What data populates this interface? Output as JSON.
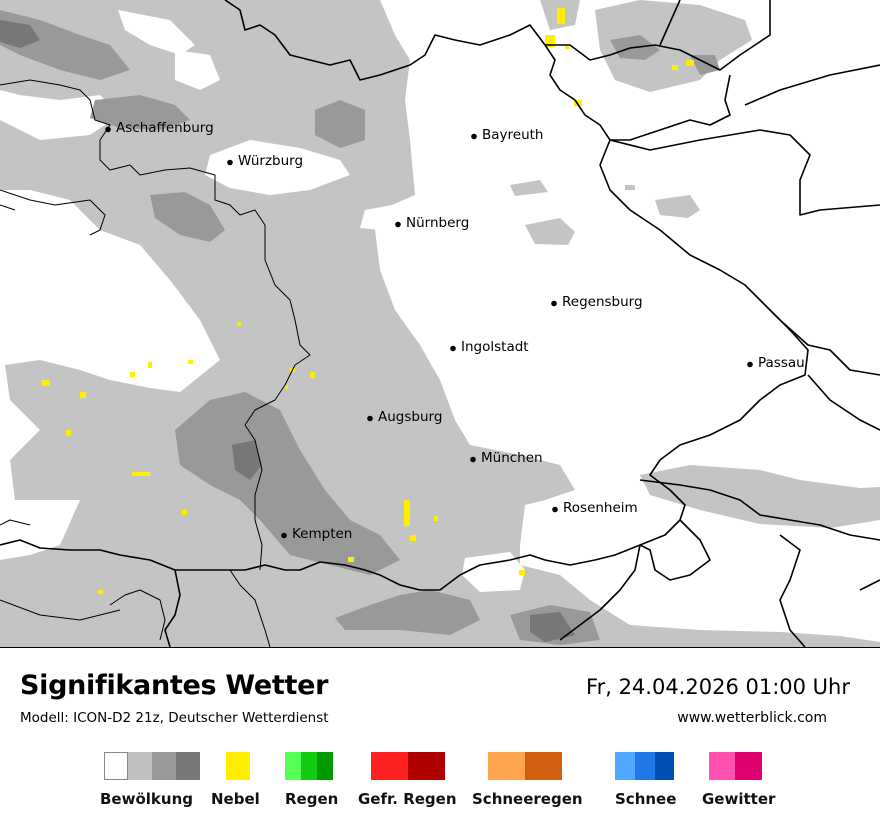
{
  "map": {
    "cities": [
      {
        "name": "Aschaffenburg"
      },
      {
        "name": "Würzburg"
      },
      {
        "name": "Bayreuth"
      },
      {
        "name": "Nürnberg"
      },
      {
        "name": "Regensburg"
      },
      {
        "name": "Ingolstadt"
      },
      {
        "name": "Passau"
      },
      {
        "name": "Augsburg"
      },
      {
        "name": "München"
      },
      {
        "name": "Rosenheim"
      },
      {
        "name": "Kempten"
      }
    ]
  },
  "footer": {
    "title": "Signifikantes Wetter",
    "subtitle": "Modell: ICON-D2 21z, Deutscher Wetterdienst",
    "datetime": "Fr, 24.04.2026 01:00 Uhr",
    "website": "www.wetterblick.com"
  },
  "legend": [
    {
      "label": "Bewölkung",
      "colors": [
        "#ffffff",
        "#c0c0c0",
        "#999999",
        "#777777"
      ]
    },
    {
      "label": "Nebel",
      "colors": [
        "#ffee00"
      ]
    },
    {
      "label": "Regen",
      "colors": [
        "#55ff55",
        "#11cc11",
        "#009900"
      ]
    },
    {
      "label": "Gefr. Regen",
      "colors": [
        "#ff2020",
        "#b00000"
      ]
    },
    {
      "label": "Schneeregen",
      "colors": [
        "#ffa550",
        "#d06010"
      ]
    },
    {
      "label": "Schnee",
      "colors": [
        "#50a8ff",
        "#1e78e6",
        "#0050b4"
      ]
    },
    {
      "label": "Gewitter",
      "colors": [
        "#ff50b0",
        "#e00070"
      ]
    }
  ]
}
